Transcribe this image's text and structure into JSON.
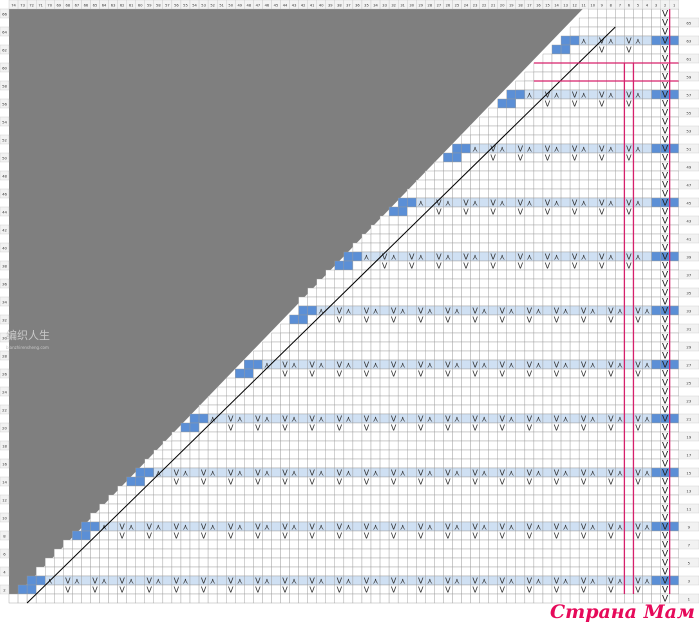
{
  "chart_data": {
    "type": "knitting-chart",
    "columns": 74,
    "rows": 66,
    "column_labels_order": "descending-left-to-right",
    "row_label_pattern": "even rows labeled on left, odd rows labeled on right",
    "pattern_rows": [
      3,
      9,
      15,
      21,
      27,
      33,
      39,
      45,
      51,
      57,
      63
    ],
    "symbols": {
      "increase": "V",
      "decrease": "⋏"
    },
    "colors": {
      "background_area": "#7f7f7f",
      "pattern_row_fill": "#cfe0f3",
      "edge_fill": "#5b8fd6",
      "grid": "#9a9a9a",
      "highlight_lines": "#d6206b",
      "diagonal": "#000000"
    }
  },
  "watermark": {
    "text": "编织人生",
    "url": "bianzhirensheng.com"
  },
  "brand": {
    "text": "Страна Мам"
  }
}
